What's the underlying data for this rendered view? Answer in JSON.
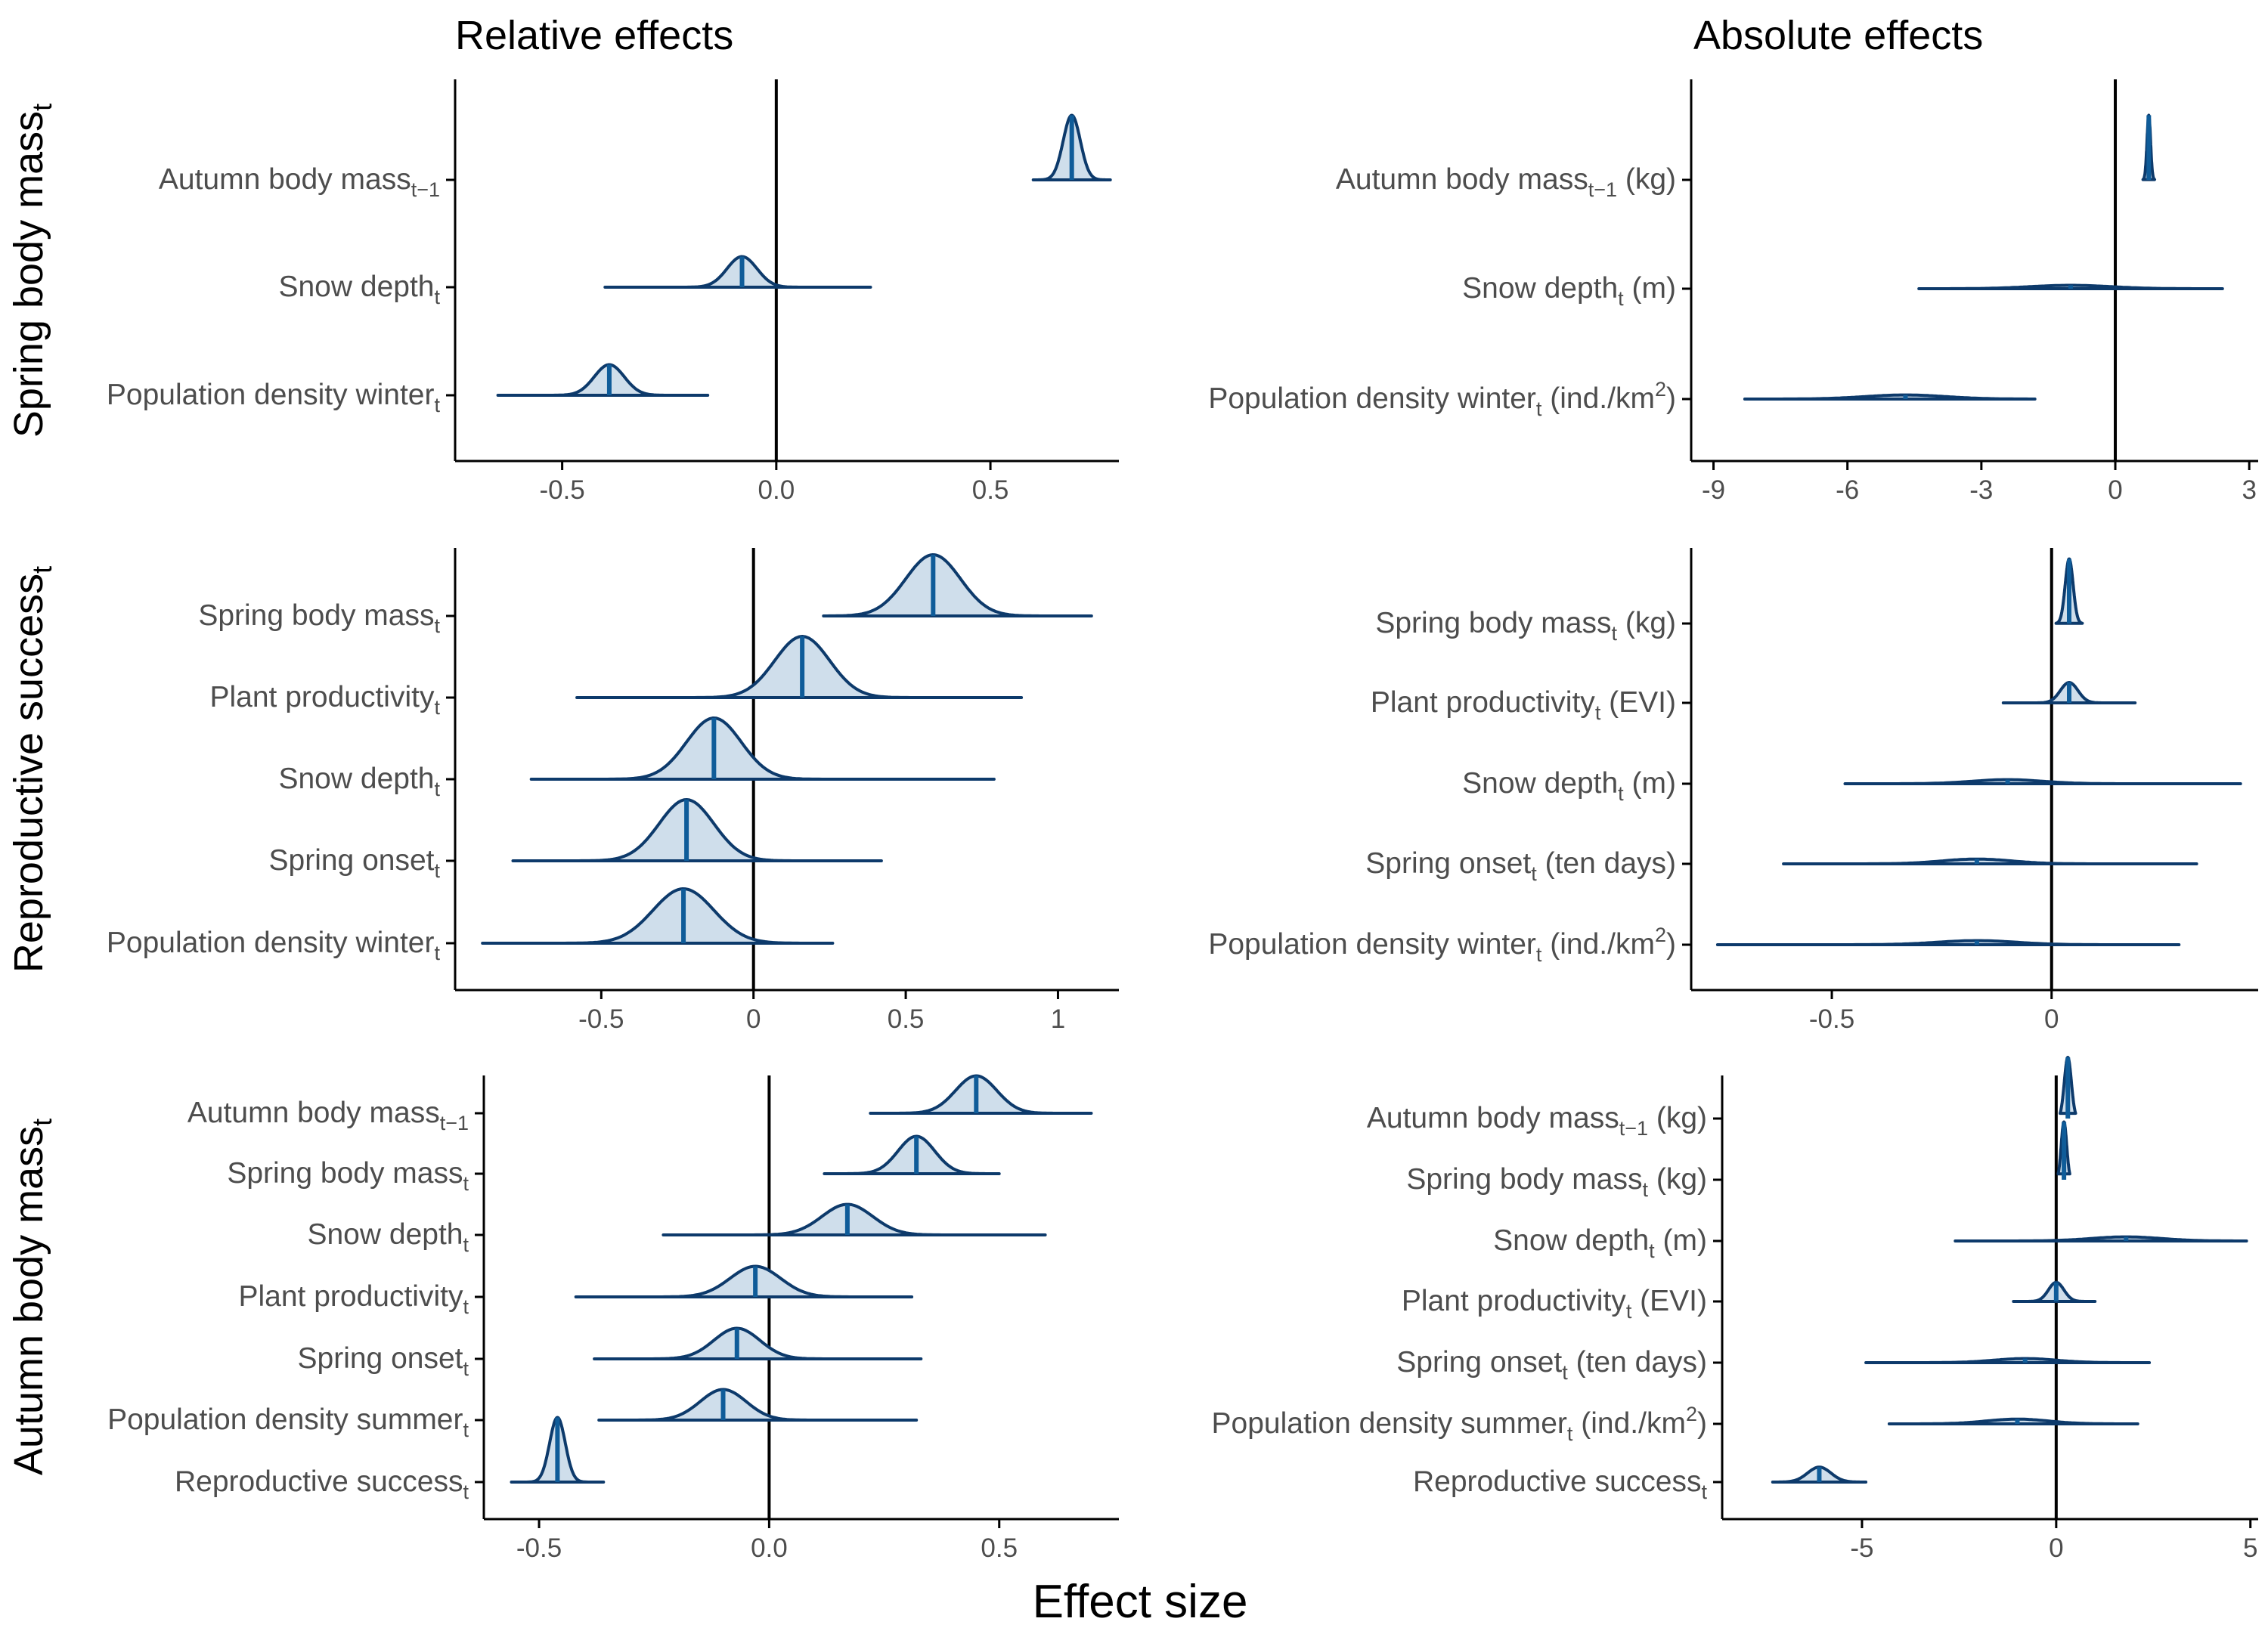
{
  "figure": {
    "col_titles": [
      "Relative effects",
      "Absolute effects"
    ],
    "x_title": "Effect size"
  },
  "chart_data": [
    {
      "type": "ridgeline",
      "row": 0,
      "col": 0,
      "title": "",
      "row_title": "Spring body mass",
      "row_title_sub": "t",
      "xlim": [
        -0.75,
        0.8
      ],
      "xticks": [
        -0.5,
        0,
        0.5
      ],
      "xtick_labels": [
        "-0.5",
        "0.0",
        "0.5"
      ],
      "terms": [
        {
          "label": "Autumn body mass",
          "sub": "t−1",
          "suffix": "",
          "sup": "",
          "suffix_end": "",
          "median": 0.69,
          "lo": 0.6,
          "hi": 0.78,
          "peak": 0.69,
          "sd": 0.02,
          "height": 0.95
        },
        {
          "label": "Snow depth",
          "sub": "t",
          "suffix": "",
          "sup": "",
          "suffix_end": "",
          "median": -0.08,
          "lo": -0.4,
          "hi": 0.22,
          "peak": -0.08,
          "sd": 0.035,
          "height": 0.45
        },
        {
          "label": "Population density winter",
          "sub": "t",
          "suffix": "",
          "sup": "",
          "suffix_end": "",
          "median": -0.39,
          "lo": -0.65,
          "hi": -0.16,
          "peak": -0.39,
          "sd": 0.035,
          "height": 0.45
        }
      ]
    },
    {
      "type": "ridgeline",
      "row": 0,
      "col": 1,
      "title": "",
      "xlim": [
        -9.5,
        3.2
      ],
      "xticks": [
        -9,
        -6,
        -3,
        0,
        3
      ],
      "xtick_labels": [
        "-9",
        "-6",
        "-3",
        "0",
        "3"
      ],
      "terms": [
        {
          "label": "Autumn body mass",
          "sub": "t−1",
          "suffix": " (kg)",
          "sup": "",
          "suffix_end": "",
          "median": 0.75,
          "lo": 0.62,
          "hi": 0.88,
          "peak": 0.75,
          "sd": 0.04,
          "height": 0.95
        },
        {
          "label": "Snow depth",
          "sub": "t",
          "suffix": " (m)",
          "sup": "",
          "suffix_end": "",
          "median": -1.0,
          "lo": -4.4,
          "hi": 2.4,
          "peak": -1.0,
          "sd": 0.9,
          "height": 0.05
        },
        {
          "label": "Population density winter",
          "sub": "t",
          "suffix": " (ind./km",
          "sup": "2",
          "suffix_end": ")",
          "median": -4.7,
          "lo": -8.3,
          "hi": -1.8,
          "peak": -4.7,
          "sd": 0.9,
          "height": 0.06
        }
      ]
    },
    {
      "type": "ridgeline",
      "row": 1,
      "col": 0,
      "title": "",
      "row_title": "Reproductive success",
      "row_title_sub": "t",
      "xlim": [
        -0.98,
        1.2
      ],
      "xticks": [
        -0.5,
        0,
        0.5,
        1
      ],
      "xtick_labels": [
        "-0.5",
        "0",
        "0.5",
        "1"
      ],
      "terms": [
        {
          "label": "Spring body mass",
          "sub": "t",
          "suffix": "",
          "sup": "",
          "suffix_end": "",
          "median": 0.59,
          "lo": 0.23,
          "hi": 1.11,
          "peak": 0.59,
          "sd": 0.09,
          "height": 0.9
        },
        {
          "label": "Plant productivity",
          "sub": "t",
          "suffix": "",
          "sup": "",
          "suffix_end": "",
          "median": 0.16,
          "lo": -0.58,
          "hi": 0.88,
          "peak": 0.16,
          "sd": 0.09,
          "height": 0.9
        },
        {
          "label": "Snow depth",
          "sub": "t",
          "suffix": "",
          "sup": "",
          "suffix_end": "",
          "median": -0.13,
          "lo": -0.73,
          "hi": 0.79,
          "peak": -0.13,
          "sd": 0.09,
          "height": 0.9
        },
        {
          "label": "Spring onset",
          "sub": "t",
          "suffix": "",
          "sup": "",
          "suffix_end": "",
          "median": -0.22,
          "lo": -0.79,
          "hi": 0.42,
          "peak": -0.22,
          "sd": 0.09,
          "height": 0.9
        },
        {
          "label": "Population density winter",
          "sub": "t",
          "suffix": "",
          "sup": "",
          "suffix_end": "",
          "median": -0.23,
          "lo": -0.89,
          "hi": 0.26,
          "peak": -0.23,
          "sd": 0.1,
          "height": 0.8
        }
      ]
    },
    {
      "type": "ridgeline",
      "row": 1,
      "col": 1,
      "title": "",
      "xlim": [
        -0.82,
        0.47
      ],
      "xticks": [
        -0.5,
        0
      ],
      "xtick_labels": [
        "-0.5",
        "0"
      ],
      "terms": [
        {
          "label": "Spring body mass",
          "sub": "t",
          "suffix": " (kg)",
          "sup": "",
          "suffix_end": "",
          "median": 0.04,
          "lo": 0.01,
          "hi": 0.07,
          "peak": 0.04,
          "sd": 0.009,
          "height": 0.95
        },
        {
          "label": "Plant productivity",
          "sub": "t",
          "suffix": " (EVI)",
          "sup": "",
          "suffix_end": "",
          "median": 0.04,
          "lo": -0.11,
          "hi": 0.19,
          "peak": 0.04,
          "sd": 0.02,
          "height": 0.3
        },
        {
          "label": "Snow depth",
          "sub": "t",
          "suffix": " (m)",
          "sup": "",
          "suffix_end": "",
          "median": -0.1,
          "lo": -0.47,
          "hi": 0.43,
          "peak": -0.1,
          "sd": 0.08,
          "height": 0.06
        },
        {
          "label": "Spring onset",
          "sub": "t",
          "suffix": " (ten days)",
          "sup": "",
          "suffix_end": "",
          "median": -0.17,
          "lo": -0.61,
          "hi": 0.33,
          "peak": -0.17,
          "sd": 0.08,
          "height": 0.07
        },
        {
          "label": "Population density winter",
          "sub": "t",
          "suffix": " (ind./km",
          "sup": "2",
          "suffix_end": ")",
          "median": -0.17,
          "lo": -0.76,
          "hi": 0.29,
          "peak": -0.17,
          "sd": 0.09,
          "height": 0.06
        }
      ]
    },
    {
      "type": "ridgeline",
      "row": 2,
      "col": 0,
      "title": "",
      "row_title": "Autumn body mass",
      "row_title_sub": "t",
      "xlim": [
        -0.62,
        0.76
      ],
      "xticks": [
        -0.5,
        0,
        0.5
      ],
      "xtick_labels": [
        "-0.5",
        "0.0",
        "0.5"
      ],
      "terms": [
        {
          "label": "Autumn body mass",
          "sub": "t−1",
          "suffix": "",
          "sup": "",
          "suffix_end": "",
          "median": 0.45,
          "lo": 0.22,
          "hi": 0.7,
          "peak": 0.45,
          "sd": 0.045,
          "height": 0.55
        },
        {
          "label": "Spring body mass",
          "sub": "t",
          "suffix": "",
          "sup": "",
          "suffix_end": "",
          "median": 0.32,
          "lo": 0.12,
          "hi": 0.5,
          "peak": 0.32,
          "sd": 0.04,
          "height": 0.55
        },
        {
          "label": "Snow depth",
          "sub": "t",
          "suffix": "",
          "sup": "",
          "suffix_end": "",
          "median": 0.17,
          "lo": -0.23,
          "hi": 0.6,
          "peak": 0.17,
          "sd": 0.055,
          "height": 0.45
        },
        {
          "label": "Plant productivity",
          "sub": "t",
          "suffix": "",
          "sup": "",
          "suffix_end": "",
          "median": -0.03,
          "lo": -0.42,
          "hi": 0.31,
          "peak": -0.03,
          "sd": 0.055,
          "height": 0.45
        },
        {
          "label": "Spring onset",
          "sub": "t",
          "suffix": "",
          "sup": "",
          "suffix_end": "",
          "median": -0.07,
          "lo": -0.38,
          "hi": 0.33,
          "peak": -0.07,
          "sd": 0.05,
          "height": 0.45
        },
        {
          "label": "Population density summer",
          "sub": "t",
          "suffix": "",
          "sup": "",
          "suffix_end": "",
          "median": -0.1,
          "lo": -0.37,
          "hi": 0.32,
          "peak": -0.1,
          "sd": 0.05,
          "height": 0.45
        },
        {
          "label": "Reproductive success",
          "sub": "t",
          "suffix": "",
          "sup": "",
          "suffix_end": "",
          "median": -0.46,
          "lo": -0.56,
          "hi": -0.36,
          "peak": -0.46,
          "sd": 0.017,
          "height": 0.95
        }
      ]
    },
    {
      "type": "ridgeline",
      "row": 2,
      "col": 1,
      "title": "",
      "xlim": [
        -8.6,
        5.2
      ],
      "xticks": [
        -5,
        0,
        5
      ],
      "xtick_labels": [
        "-5",
        "0",
        "5"
      ],
      "terms": [
        {
          "label": "Autumn body mass",
          "sub": "t−1",
          "suffix": " (kg)",
          "sup": "",
          "suffix_end": "",
          "median": 0.3,
          "lo": 0.1,
          "hi": 0.5,
          "peak": 0.3,
          "sd": 0.09,
          "height": 0.9
        },
        {
          "label": "Spring body mass",
          "sub": "t",
          "suffix": " (kg)",
          "sup": "",
          "suffix_end": "",
          "median": 0.2,
          "lo": 0.05,
          "hi": 0.35,
          "peak": 0.2,
          "sd": 0.07,
          "height": 0.85
        },
        {
          "label": "Snow depth",
          "sub": "t",
          "suffix": " (m)",
          "sup": "",
          "suffix_end": "",
          "median": 1.8,
          "lo": -2.6,
          "hi": 4.9,
          "peak": 1.8,
          "sd": 0.9,
          "height": 0.06
        },
        {
          "label": "Plant productivity",
          "sub": "t",
          "suffix": " (EVI)",
          "sup": "",
          "suffix_end": "",
          "median": 0.0,
          "lo": -1.1,
          "hi": 1.0,
          "peak": 0.0,
          "sd": 0.2,
          "height": 0.28
        },
        {
          "label": "Spring onset",
          "sub": "t",
          "suffix": " (ten days)",
          "sup": "",
          "suffix_end": "",
          "median": -0.8,
          "lo": -4.9,
          "hi": 2.4,
          "peak": -0.8,
          "sd": 0.8,
          "height": 0.06
        },
        {
          "label": "Population density summer",
          "sub": "t",
          "suffix": " (ind./km",
          "sup": "2",
          "suffix_end": ")",
          "median": -1.0,
          "lo": -4.3,
          "hi": 2.1,
          "peak": -1.0,
          "sd": 0.8,
          "height": 0.07
        },
        {
          "label": "Reproductive success",
          "sub": "t",
          "suffix": "",
          "sup": "",
          "suffix_end": "",
          "median": -6.1,
          "lo": -7.3,
          "hi": -4.9,
          "peak": -6.1,
          "sd": 0.3,
          "height": 0.22
        }
      ]
    }
  ]
}
